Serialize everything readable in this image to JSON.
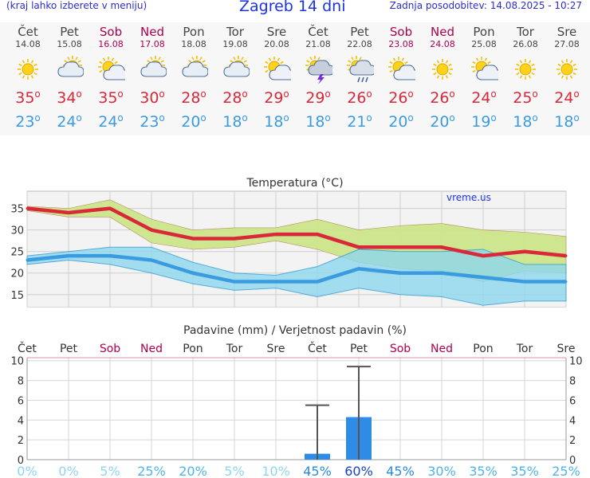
{
  "header": {
    "left_note": "(kraj lahko izberete v meniju)",
    "title": "Zagreb 14 dni",
    "updated": "Zadnja posodobitev: 14.08.2025 - 10:27"
  },
  "days": [
    {
      "name": "Čet",
      "date": "14.08",
      "weekend": false,
      "icon": "sun-icon",
      "tmax": "35",
      "tmin": "23"
    },
    {
      "name": "Pet",
      "date": "15.08",
      "weekend": false,
      "icon": "cloud-sun-icon",
      "tmax": "34",
      "tmin": "24"
    },
    {
      "name": "Sob",
      "date": "16.08",
      "weekend": true,
      "icon": "sun-cloud-icon",
      "tmax": "35",
      "tmin": "24"
    },
    {
      "name": "Ned",
      "date": "17.08",
      "weekend": true,
      "icon": "cloud-sun-icon",
      "tmax": "30",
      "tmin": "23"
    },
    {
      "name": "Pon",
      "date": "18.08",
      "weekend": false,
      "icon": "cloud-sun-icon",
      "tmax": "28",
      "tmin": "20"
    },
    {
      "name": "Tor",
      "date": "19.08",
      "weekend": false,
      "icon": "cloud-sun-icon",
      "tmax": "28",
      "tmin": "18"
    },
    {
      "name": "Sre",
      "date": "20.08",
      "weekend": false,
      "icon": "sun-cloud-icon",
      "tmax": "29",
      "tmin": "18"
    },
    {
      "name": "Čet",
      "date": "21.08",
      "weekend": false,
      "icon": "thunderstorm-icon",
      "tmax": "29",
      "tmin": "18"
    },
    {
      "name": "Pet",
      "date": "22.08",
      "weekend": false,
      "icon": "rain-sun-icon",
      "tmax": "26",
      "tmin": "21"
    },
    {
      "name": "Sob",
      "date": "23.08",
      "weekend": true,
      "icon": "sun-cloud-icon",
      "tmax": "26",
      "tmin": "20"
    },
    {
      "name": "Ned",
      "date": "24.08",
      "weekend": true,
      "icon": "sun-icon",
      "tmax": "26",
      "tmin": "20"
    },
    {
      "name": "Pon",
      "date": "25.08",
      "weekend": false,
      "icon": "sun-cloud-icon",
      "tmax": "24",
      "tmin": "19"
    },
    {
      "name": "Tor",
      "date": "26.08",
      "weekend": false,
      "icon": "sun-icon",
      "tmax": "25",
      "tmin": "18"
    },
    {
      "name": "Sre",
      "date": "27.08",
      "weekend": false,
      "icon": "sun-icon",
      "tmax": "24",
      "tmin": "18"
    }
  ],
  "colors": {
    "max_line": "#d8283a",
    "min_line": "#3b9be0",
    "max_band": "#cde68a",
    "min_band": "#8fd8ef",
    "overlap_band": "#8cd08a",
    "weekend": "#b0004c",
    "precip_bar": "#2e8ce6"
  },
  "chart_data": [
    {
      "type": "line",
      "title": "Temperatura (°C)",
      "watermark": "vreme.us",
      "x": [
        "Čet",
        "Pet",
        "Sob",
        "Ned",
        "Pon",
        "Tor",
        "Sre",
        "Čet",
        "Pet",
        "Sob",
        "Ned",
        "Pon",
        "Tor",
        "Sre"
      ],
      "yticks": [
        15,
        20,
        25,
        30,
        35
      ],
      "ylim": [
        12,
        39
      ],
      "series": [
        {
          "values": [
            35,
            34,
            35,
            30,
            28,
            28,
            29,
            29,
            26,
            26,
            26,
            24,
            25,
            24
          ],
          "band": {
            "low": [
              34.5,
              33,
              33,
              27,
              25.5,
              26,
              27.5,
              25.5,
              22.5,
              21,
              20.5,
              18,
              20.5,
              20
            ],
            "high": [
              35.5,
              35,
              37,
              32.5,
              30,
              30.5,
              30.5,
              32.5,
              30,
              31,
              31.5,
              30,
              29.5,
              28.5
            ]
          }
        },
        {
          "values": [
            23,
            24,
            24,
            23,
            20,
            18,
            18,
            18,
            21,
            20,
            20,
            19,
            18,
            18
          ],
          "band": {
            "low": [
              22,
              23,
              22,
              20,
              17.5,
              16,
              16.5,
              14.5,
              16.5,
              15,
              14.5,
              12.5,
              13.5,
              13.5
            ],
            "high": [
              24,
              25,
              26,
              26,
              22.5,
              20,
              19.5,
              21.5,
              25.5,
              25,
              25,
              25.5,
              22,
              22
            ]
          }
        }
      ],
      "grid": true
    },
    {
      "type": "bar",
      "title": "Padavine (mm) / Verjetnost padavin (%)",
      "categories": [
        "Čet",
        "Pet",
        "Sob",
        "Ned",
        "Pon",
        "Tor",
        "Sre",
        "Čet",
        "Pet",
        "Sob",
        "Ned",
        "Pon",
        "Tor",
        "Sre"
      ],
      "weekend": [
        false,
        false,
        true,
        true,
        false,
        false,
        false,
        false,
        false,
        true,
        true,
        false,
        false,
        false
      ],
      "values": [
        0,
        0,
        0,
        0,
        0,
        0,
        0,
        0.6,
        4.3,
        0,
        0,
        0,
        0,
        0
      ],
      "error_max": [
        0,
        0,
        0,
        0,
        0,
        0,
        0,
        5.5,
        9.4,
        0,
        0,
        0,
        0,
        0
      ],
      "probability": [
        "0%",
        "0%",
        "5%",
        "25%",
        "20%",
        "5%",
        "10%",
        "45%",
        "60%",
        "45%",
        "30%",
        "35%",
        "35%",
        "25%"
      ],
      "yticks": [
        0,
        2,
        4,
        6,
        8,
        10
      ],
      "ylim": [
        0,
        10.3
      ],
      "grid": true
    }
  ]
}
